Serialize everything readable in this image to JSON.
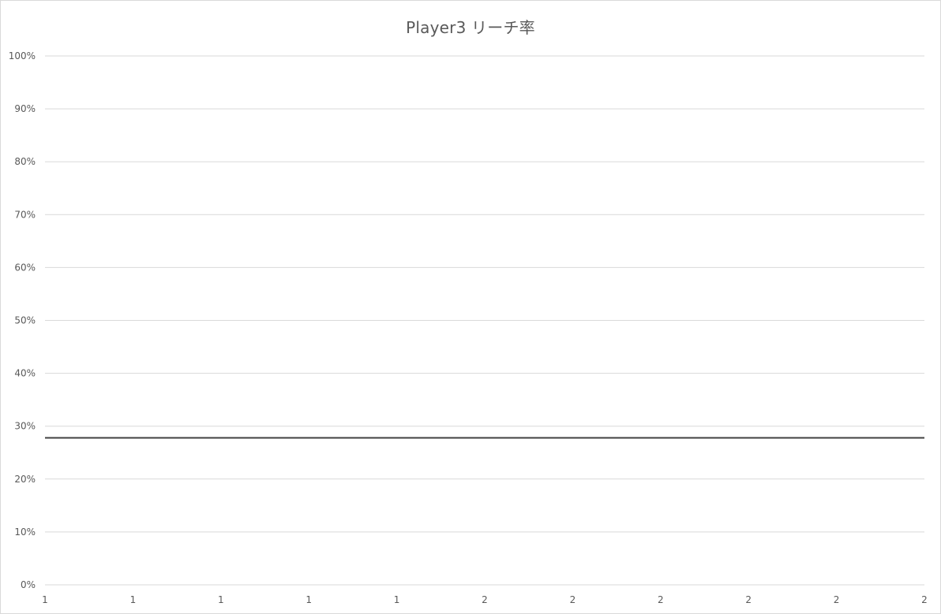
{
  "chart_data": {
    "type": "line",
    "title": "Player3 リーチ率",
    "xlabel": "",
    "ylabel": "",
    "categories": [
      "1",
      "1",
      "1",
      "1",
      "1",
      "2",
      "2",
      "2",
      "2",
      "2",
      "2"
    ],
    "y_tick_labels": [
      "0%",
      "10%",
      "20%",
      "30%",
      "40%",
      "50%",
      "60%",
      "70%",
      "80%",
      "90%",
      "100%"
    ],
    "ylim": [
      0,
      1
    ],
    "series": [
      {
        "values": [
          0.278,
          0.278,
          0.278,
          0.278,
          0.278,
          0.278,
          0.278,
          0.278,
          0.278,
          0.278,
          0.278
        ],
        "color": "#404040"
      }
    ],
    "grid": true,
    "gridline_color": "#d9d9d9",
    "legend": "none"
  }
}
